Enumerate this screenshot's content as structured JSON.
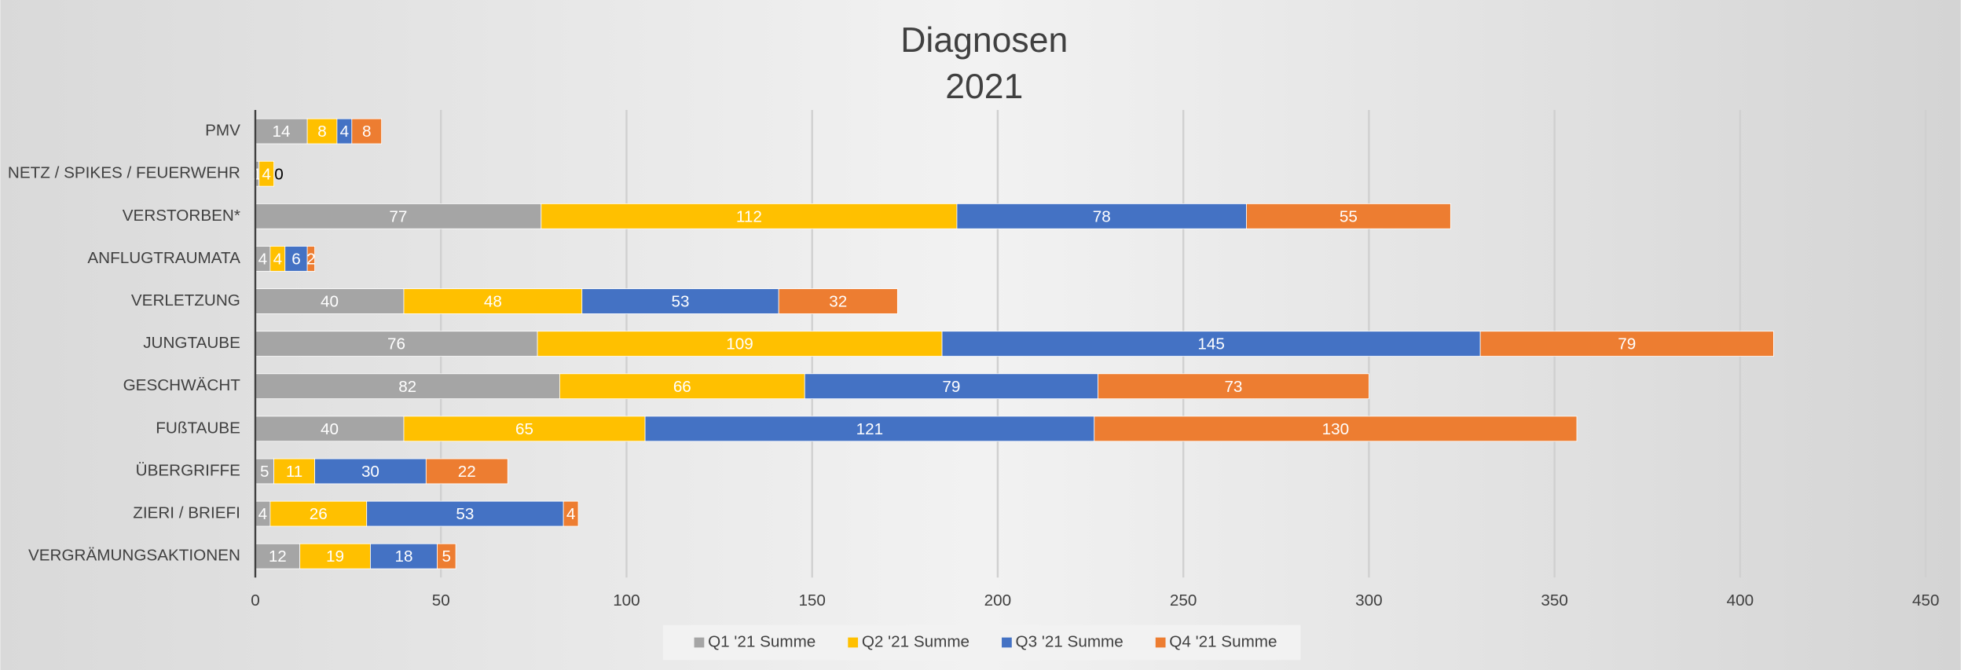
{
  "chart_data": {
    "type": "bar",
    "orientation": "horizontal",
    "stacked": true,
    "title": "Diagnosen",
    "subtitle": "2021",
    "categories": [
      "PMV",
      "NETZ / SPIKES / FEUERWEHR",
      "VERSTORBEN*",
      "ANFLUGTRAUMATA",
      "VERLETZUNG",
      "JUNGTAUBE",
      "GESCHWÄCHT",
      "FUßTAUBE",
      "ÜBERGRIFFE",
      "ZIERI / BRIEFI",
      "VERGRÄMUNGSAKTIONEN"
    ],
    "series": [
      {
        "name": "Q1 '21 Summe",
        "color": "#a5a5a5",
        "values": [
          14,
          1,
          77,
          4,
          40,
          76,
          82,
          40,
          5,
          4,
          12
        ]
      },
      {
        "name": "Q2 '21 Summe",
        "color": "#ffc000",
        "values": [
          8,
          4,
          112,
          4,
          48,
          109,
          66,
          65,
          11,
          26,
          19
        ]
      },
      {
        "name": "Q3 '21 Summe",
        "color": "#4472c4",
        "values": [
          4,
          null,
          78,
          6,
          53,
          145,
          79,
          121,
          30,
          53,
          18
        ]
      },
      {
        "name": "Q4 '21 Summe",
        "color": "#ed7d31",
        "values": [
          8,
          0,
          55,
          2,
          32,
          79,
          73,
          130,
          22,
          4,
          5
        ]
      }
    ],
    "xlim": [
      0,
      450
    ],
    "xticks": [
      0,
      50,
      100,
      150,
      200,
      250,
      300,
      350,
      400,
      450
    ],
    "grid": true,
    "legend": "bottom"
  }
}
